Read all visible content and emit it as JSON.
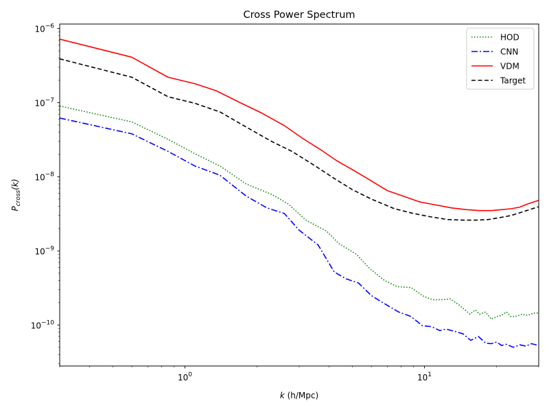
{
  "chart_data": {
    "type": "line",
    "title": "Cross Power Spectrum",
    "xlabel": "k (h/Mpc)",
    "ylabel": "P_cross(k)",
    "xscale": "log",
    "yscale": "log",
    "xlim": [
      0.3,
      30
    ],
    "ylim": [
      2.8e-11,
      1.15e-06
    ],
    "x_ticks": [
      {
        "value": 1,
        "base": "10",
        "exp": "0"
      },
      {
        "value": 10,
        "base": "10",
        "exp": "1"
      }
    ],
    "y_ticks": [
      {
        "value": 1e-10,
        "base": "10",
        "exp": "−10"
      },
      {
        "value": 1e-09,
        "base": "10",
        "exp": "−9"
      },
      {
        "value": 1e-08,
        "base": "10",
        "exp": "−8"
      },
      {
        "value": 1e-07,
        "base": "10",
        "exp": "−7"
      },
      {
        "value": 1e-06,
        "base": "10",
        "exp": "−6"
      }
    ],
    "legend_position": "top-right",
    "series": [
      {
        "name": "HOD",
        "color": "#008000",
        "style": "dotted",
        "x": [
          0.3,
          0.6,
          0.85,
          1.1,
          1.4,
          1.8,
          2.3,
          2.7,
          3.2,
          3.9,
          4.4,
          5.2,
          5.9,
          6.8,
          7.7,
          8.8,
          9.9,
          10.8,
          12.0,
          12.8,
          14.0,
          15.5,
          16.3,
          17.0,
          18.0,
          19.0,
          20.0,
          21.0,
          22.0,
          23.0,
          24.0,
          25.5,
          27.0,
          28.5,
          30.0
        ],
        "values": [
          9e-08,
          5.5e-08,
          3.2e-08,
          2.05e-08,
          1.4e-08,
          8e-09,
          5.8e-09,
          4.3e-09,
          2.6e-09,
          1.85e-09,
          1.25e-09,
          9e-10,
          5.8e-10,
          4e-10,
          3.3e-10,
          3.2e-10,
          2.45e-10,
          2.2e-10,
          2.2e-10,
          2.25e-10,
          1.85e-10,
          1.4e-10,
          1.6e-10,
          1.4e-10,
          1.5e-10,
          1.2e-10,
          1.3e-10,
          1.35e-10,
          1.5e-10,
          1.3e-10,
          1.3e-10,
          1.4e-10,
          1.35e-10,
          1.45e-10,
          1.45e-10
        ]
      },
      {
        "name": "CNN",
        "color": "#0000ff",
        "style": "dashdot",
        "x": [
          0.3,
          0.6,
          0.85,
          1.1,
          1.4,
          1.8,
          2.2,
          2.6,
          3.0,
          3.6,
          4.2,
          4.7,
          5.3,
          6.0,
          6.7,
          7.8,
          8.8,
          9.8,
          10.7,
          11.6,
          12.3,
          13.4,
          14.5,
          15.6,
          16.8,
          18.0,
          19.0,
          20.0,
          21.0,
          22.0,
          23.5,
          25.0,
          26.5,
          28.0,
          30.0
        ],
        "values": [
          6.2e-08,
          3.8e-08,
          2.2e-08,
          1.4e-08,
          1.05e-08,
          5.5e-09,
          3.8e-09,
          3.2e-09,
          1.9e-09,
          1.2e-09,
          5.2e-10,
          4.2e-10,
          3.7e-10,
          2.5e-10,
          2e-10,
          1.5e-10,
          1.3e-10,
          9.8e-11,
          9.5e-11,
          8.4e-11,
          8.8e-11,
          8.2e-11,
          7.6e-11,
          6.2e-11,
          7e-11,
          5.7e-11,
          5.6e-11,
          5.9e-11,
          5.3e-11,
          5.5e-11,
          5e-11,
          5.4e-11,
          5.2e-11,
          5.6e-11,
          5.3e-11
        ]
      },
      {
        "name": "VDM",
        "color": "#ff0000",
        "style": "solid",
        "x": [
          0.3,
          0.6,
          0.85,
          1.1,
          1.35,
          1.7,
          2.1,
          2.6,
          3.1,
          3.7,
          4.3,
          5.0,
          6.0,
          7.0,
          8.0,
          9.5,
          11.0,
          13.0,
          15.0,
          17.0,
          19.0,
          21.0,
          23.0,
          25.0,
          27.0,
          30.0
        ],
        "values": [
          7.2e-07,
          4.1e-07,
          2.2e-07,
          1.8e-07,
          1.45e-07,
          1e-07,
          7.2e-08,
          4.9e-08,
          3.3e-08,
          2.3e-08,
          1.65e-08,
          1.25e-08,
          8.8e-09,
          6.5e-09,
          5.6e-09,
          4.6e-09,
          4.2e-09,
          3.8e-09,
          3.6e-09,
          3.5e-09,
          3.5e-09,
          3.6e-09,
          3.7e-09,
          3.9e-09,
          4.3e-09,
          4.8e-09
        ]
      },
      {
        "name": "Target",
        "color": "#000000",
        "style": "dashed",
        "x": [
          0.3,
          0.6,
          0.85,
          1.1,
          1.4,
          1.8,
          2.3,
          2.8,
          3.5,
          4.2,
          5.0,
          6.0,
          7.5,
          9.0,
          10.5,
          12.5,
          14.5,
          16.5,
          18.5,
          20.5,
          23.0,
          26.0,
          30.0
        ],
        "values": [
          3.9e-07,
          2.2e-07,
          1.2e-07,
          9.8e-08,
          7.5e-08,
          4.7e-08,
          3e-08,
          2.2e-08,
          1.4e-08,
          9.5e-09,
          6.7e-09,
          5e-09,
          3.7e-09,
          3.2e-09,
          2.9e-09,
          2.65e-09,
          2.6e-09,
          2.6e-09,
          2.65e-09,
          2.8e-09,
          3e-09,
          3.4e-09,
          3.95e-09
        ]
      }
    ]
  },
  "labels": {
    "title": "Cross Power Spectrum",
    "xlabel_var": "k",
    "xlabel_units": " (h/Mpc)",
    "ylabel_main": "P",
    "ylabel_sub": "cross",
    "ylabel_arg": "(k)"
  }
}
